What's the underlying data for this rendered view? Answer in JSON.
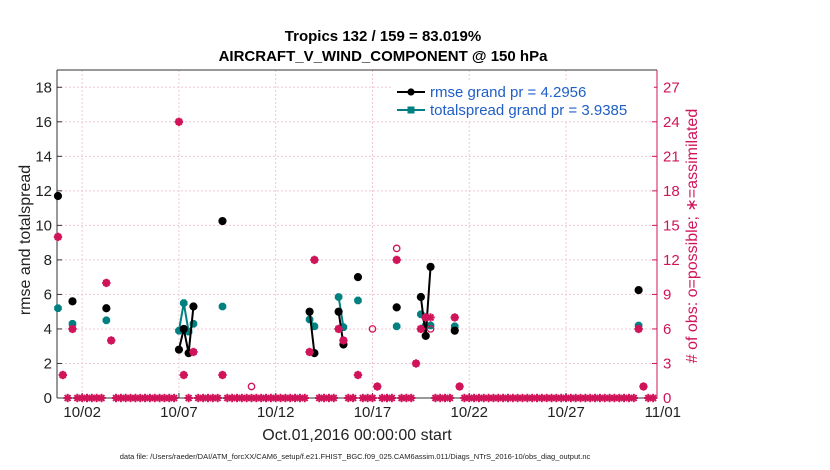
{
  "title_line1": "Tropics 132 / 159 = 83.019%",
  "title_line2": "AIRCRAFT_V_WIND_COMPONENT @ 150 hPa",
  "left_ylabel": "rmse and totalspread",
  "right_ylabel": "# of obs: o=possible; ∗=assimilated",
  "xlabel": "Oct.01,2016 00:00:00 start",
  "footer": "data file: /Users/raeder/DAI/ATM_forcXX/CAM6_setup/f.e21.FHIST_BGC.f09_025.CAM6assim.011/Diags_NTrS_2016-10/obs_diag_output.nc",
  "colors": {
    "rmse": "#000000",
    "spread": "#008080",
    "obs": "#d0145a",
    "legend_text": "#1f5fc7",
    "grid": "#f0c8d4"
  },
  "chart_data": {
    "type": "line",
    "xlim": [
      0.2,
      31.2
    ],
    "ylim_left": [
      0,
      19
    ],
    "ylim_right": [
      0,
      28.5
    ],
    "yticks_left": [
      0,
      2,
      4,
      6,
      8,
      10,
      12,
      14,
      16,
      18
    ],
    "yticks_right": [
      0,
      3,
      6,
      9,
      12,
      15,
      18,
      21,
      24,
      27
    ],
    "x_ticks": [
      {
        "x": 1.5,
        "label": "10/02"
      },
      {
        "x": 6.5,
        "label": "10/07"
      },
      {
        "x": 11.5,
        "label": "10/12"
      },
      {
        "x": 16.5,
        "label": "10/17"
      },
      {
        "x": 21.5,
        "label": "10/22"
      },
      {
        "x": 26.5,
        "label": "10/27"
      },
      {
        "x": 31.5,
        "label": "11/01"
      }
    ],
    "legend": [
      {
        "label": "rmse grand pr = 4.2956",
        "series": "rmse"
      },
      {
        "label": "totalspread grand pr = 3.9385",
        "series": "spread"
      }
    ],
    "series": [
      {
        "name": "rmse",
        "segments": [
          [
            [
              0.25,
              11.7
            ]
          ],
          [
            [
              1.0,
              5.6
            ]
          ],
          [
            [
              2.75,
              5.2
            ]
          ],
          [
            [
              6.5,
              2.8
            ],
            [
              6.75,
              4.0
            ],
            [
              7.0,
              2.6
            ],
            [
              7.25,
              5.3
            ]
          ],
          [
            [
              8.75,
              10.25
            ]
          ],
          [
            [
              13.25,
              5.0
            ],
            [
              13.5,
              2.6
            ]
          ],
          [
            [
              14.75,
              5.0
            ],
            [
              15.0,
              3.1
            ]
          ],
          [
            [
              15.75,
              7.0
            ]
          ],
          [
            [
              17.75,
              5.25
            ]
          ],
          [
            [
              19.0,
              5.85
            ],
            [
              19.25,
              3.6
            ],
            [
              19.5,
              7.6
            ]
          ],
          [
            [
              20.75,
              3.9
            ]
          ],
          [
            [
              30.25,
              6.25
            ]
          ]
        ]
      },
      {
        "name": "totalspread",
        "segments": [
          [
            [
              0.25,
              5.2
            ]
          ],
          [
            [
              1.0,
              4.3
            ]
          ],
          [
            [
              2.75,
              4.5
            ]
          ],
          [
            [
              6.5,
              3.9
            ],
            [
              6.75,
              5.5
            ],
            [
              7.0,
              3.85
            ],
            [
              7.25,
              4.3
            ]
          ],
          [
            [
              8.75,
              5.3
            ]
          ],
          [
            [
              13.25,
              4.55
            ],
            [
              13.5,
              4.15
            ]
          ],
          [
            [
              14.75,
              5.85
            ],
            [
              15.0,
              4.1
            ]
          ],
          [
            [
              15.75,
              5.65
            ]
          ],
          [
            [
              17.75,
              4.15
            ]
          ],
          [
            [
              19.0,
              4.85
            ],
            [
              19.25,
              4.2
            ],
            [
              19.5,
              4.2
            ]
          ],
          [
            [
              20.75,
              4.15
            ]
          ],
          [
            [
              30.25,
              4.2
            ]
          ]
        ]
      }
    ],
    "obs_possible": [
      [
        0.25,
        14
      ],
      [
        0.5,
        2
      ],
      [
        1.0,
        6
      ],
      [
        2.75,
        10
      ],
      [
        3.0,
        5
      ],
      [
        6.5,
        24
      ],
      [
        6.75,
        2
      ],
      [
        7.25,
        4
      ],
      [
        8.75,
        2
      ],
      [
        10.25,
        1
      ],
      [
        13.25,
        4
      ],
      [
        13.5,
        12
      ],
      [
        14.75,
        6
      ],
      [
        15.0,
        5
      ],
      [
        15.75,
        2
      ],
      [
        16.5,
        6
      ],
      [
        16.75,
        1
      ],
      [
        17.75,
        13
      ],
      [
        17.75,
        12
      ],
      [
        18.75,
        3
      ],
      [
        19.0,
        6
      ],
      [
        19.25,
        7
      ],
      [
        19.5,
        6
      ],
      [
        20.75,
        7
      ],
      [
        21.0,
        1
      ],
      [
        30.25,
        6
      ],
      [
        30.5,
        1
      ]
    ],
    "obs_assimilated": [
      [
        0.25,
        14
      ],
      [
        0.5,
        2
      ],
      [
        1.0,
        6
      ],
      [
        2.75,
        10
      ],
      [
        3.0,
        5
      ],
      [
        6.5,
        24
      ],
      [
        6.75,
        2
      ],
      [
        7.25,
        4
      ],
      [
        8.75,
        2
      ],
      [
        10.25,
        0
      ],
      [
        13.25,
        4
      ],
      [
        13.5,
        12
      ],
      [
        14.75,
        6
      ],
      [
        15.0,
        5
      ],
      [
        15.75,
        2
      ],
      [
        16.5,
        0
      ],
      [
        16.75,
        1
      ],
      [
        17.75,
        12
      ],
      [
        18.75,
        3
      ],
      [
        19.0,
        6
      ],
      [
        19.25,
        7
      ],
      [
        19.5,
        7
      ],
      [
        20.75,
        7
      ],
      [
        21.0,
        1
      ],
      [
        30.25,
        6
      ],
      [
        30.5,
        1
      ]
    ]
  }
}
